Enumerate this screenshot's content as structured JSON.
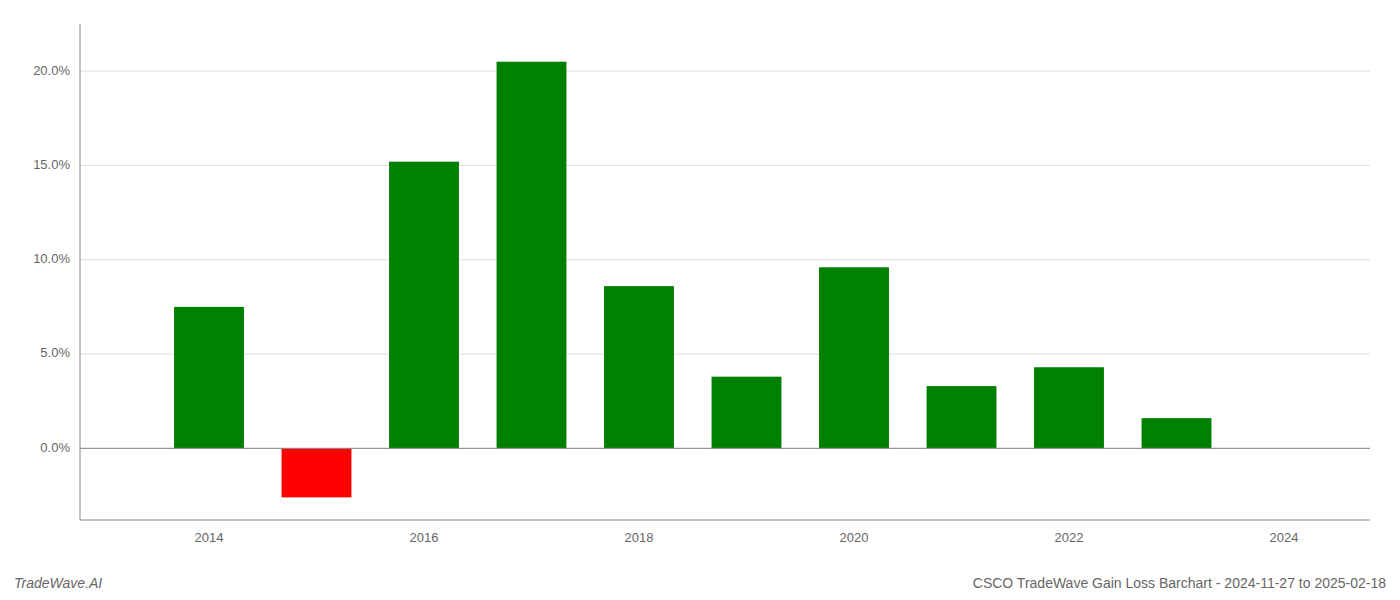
{
  "chart_data": {
    "type": "bar",
    "title": "CSCO TradeWave Gain Loss Barchart - 2024-11-27 to 2025-02-18",
    "annotations": [
      "TradeWave.AI"
    ],
    "x": [
      2014,
      2015,
      2016,
      2017,
      2018,
      2019,
      2020,
      2021,
      2022,
      2023
    ],
    "values": [
      0.075,
      -0.026,
      0.152,
      0.205,
      0.086,
      0.038,
      0.096,
      0.033,
      0.043,
      0.016
    ],
    "colors": [
      "#008000",
      "#ff0000",
      "#008000",
      "#008000",
      "#008000",
      "#008000",
      "#008000",
      "#008000",
      "#008000",
      "#008000"
    ],
    "xlim": [
      2012.8,
      2024.8
    ],
    "xticks": [
      2014,
      2016,
      2018,
      2020,
      2022,
      2024
    ],
    "ylim": [
      -0.038,
      0.225
    ],
    "yticks": [
      {
        "value": 0.0,
        "label": "0.0%"
      },
      {
        "value": 0.05,
        "label": "5.0%"
      },
      {
        "value": 0.1,
        "label": "10.0%"
      },
      {
        "value": 0.15,
        "label": "15.0%"
      },
      {
        "value": 0.2,
        "label": "20.0%"
      }
    ],
    "grid": true
  }
}
